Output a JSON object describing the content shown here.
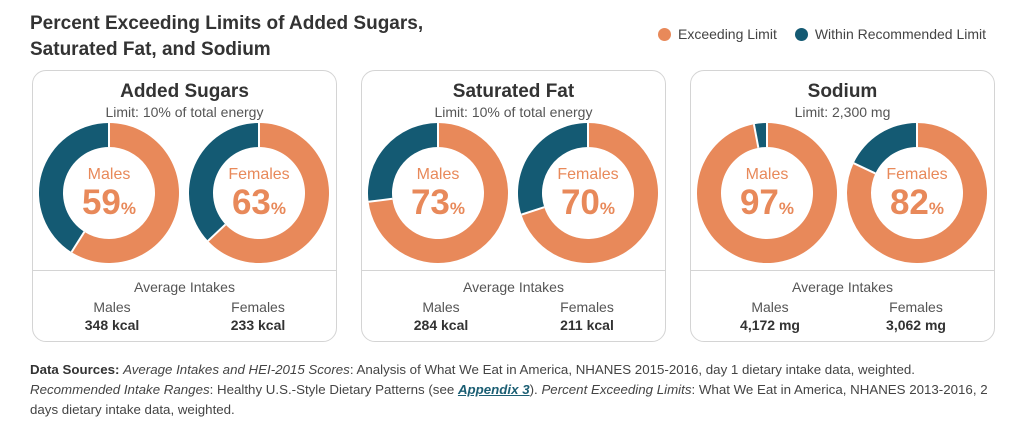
{
  "title": "Percent Exceeding Limits of Added Sugars, Saturated Fat, and Sodium",
  "colors": {
    "exceeding": "#e8895a",
    "within": "#145a73",
    "gap": "#ffffff"
  },
  "chart_data": {
    "type": "pie",
    "legend": {
      "placement": "top-right",
      "entries": [
        {
          "label": "Exceeding Limit",
          "color": "#e8895a"
        },
        {
          "label": "Within Recommended Limit",
          "color": "#145a73"
        }
      ]
    },
    "panels": [
      {
        "title": "Added Sugars",
        "limit": "Limit: 10% of total energy",
        "donuts": [
          {
            "label": "Males",
            "value": 59
          },
          {
            "label": "Females",
            "value": 63
          }
        ],
        "avg_title": "Average Intakes",
        "intakes": [
          {
            "label": "Males",
            "value": "348 kcal"
          },
          {
            "label": "Females",
            "value": "233 kcal"
          }
        ]
      },
      {
        "title": "Saturated Fat",
        "limit": "Limit: 10% of total energy",
        "donuts": [
          {
            "label": "Males",
            "value": 73
          },
          {
            "label": "Females",
            "value": 70
          }
        ],
        "avg_title": "Average Intakes",
        "intakes": [
          {
            "label": "Males",
            "value": "284 kcal"
          },
          {
            "label": "Females",
            "value": "211 kcal"
          }
        ]
      },
      {
        "title": "Sodium",
        "limit": "Limit: 2,300 mg",
        "donuts": [
          {
            "label": "Males",
            "value": 97
          },
          {
            "label": "Females",
            "value": 82
          }
        ],
        "avg_title": "Average Intakes",
        "intakes": [
          {
            "label": "Males",
            "value": "4,172 mg"
          },
          {
            "label": "Females",
            "value": "3,062 mg"
          }
        ]
      }
    ],
    "unit": "%"
  },
  "sources": {
    "label": "Data Sources:",
    "p1_title": "Average Intakes and HEI-2015 Scores",
    "p1_text": ": Analysis of What We Eat in America, NHANES 2015-2016, day 1 dietary intake data, weighted. ",
    "p2_title": "Recommended Intake Ranges",
    "p2_text": ": Healthy U.S.-Style Dietary Patterns (see ",
    "appendix": "Appendix 3",
    "p2_close": "). ",
    "p3_title": "Percent Exceeding Limits",
    "p3_text": ": What We Eat in America, NHANES 2013-2016, 2 days dietary intake data, weighted."
  }
}
